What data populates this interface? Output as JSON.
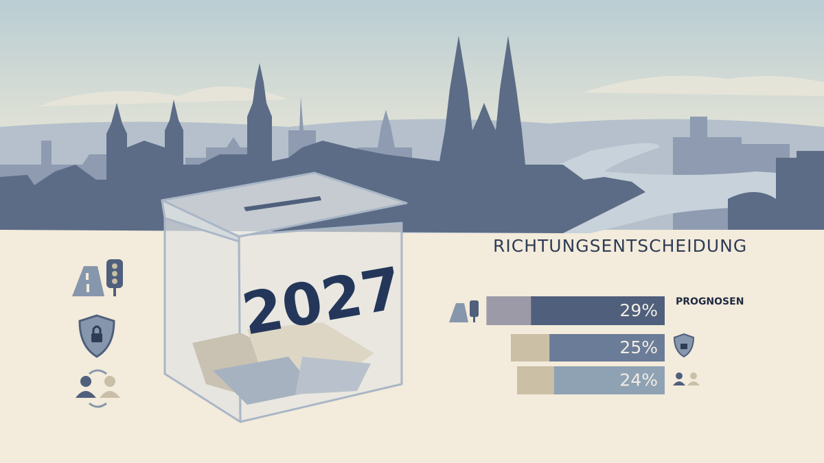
{
  "illustration": {
    "year": "2027",
    "heading": "RICHTUNGSENTSCHEIDUNG",
    "legend_label": "PROGNOSEN"
  },
  "chart_data": {
    "type": "bar",
    "orientation": "horizontal",
    "values": [
      29,
      25,
      24
    ],
    "value_labels": [
      "29%",
      "25%",
      "24%"
    ],
    "colors": [
      "#4f5f7c",
      "#6b7c98",
      "#8fa2b4"
    ],
    "accent_colors": [
      "#9d9aa8",
      "#cbbfa6",
      "#cbbfa6"
    ]
  }
}
